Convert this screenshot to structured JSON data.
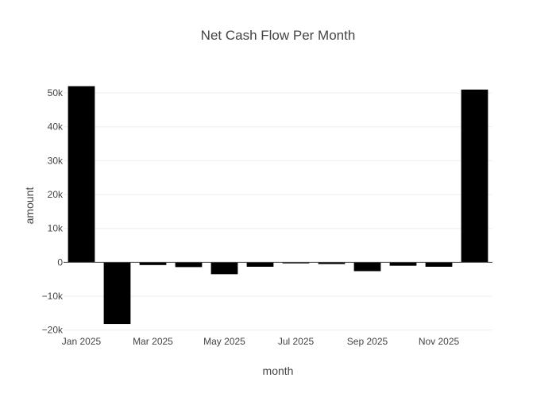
{
  "chart_data": {
    "type": "bar",
    "title": "Net Cash Flow Per Month",
    "xlabel": "month",
    "ylabel": "amount",
    "x": [
      "2025-01",
      "2025-02",
      "2025-03",
      "2025-04",
      "2025-05",
      "2025-06",
      "2025-07",
      "2025-08",
      "2025-09",
      "2025-10",
      "2025-11",
      "2025-12"
    ],
    "values": [
      52000,
      -18200,
      -800,
      -1400,
      -3500,
      -1300,
      -300,
      -500,
      -2600,
      -1000,
      -1300,
      51000
    ],
    "ylim": [
      -21000,
      54000
    ],
    "y_ticks": [
      -20000,
      -10000,
      0,
      10000,
      20000,
      30000,
      40000,
      50000
    ],
    "y_tick_labels": [
      "−20k",
      "−10k",
      "0",
      "10k",
      "20k",
      "30k",
      "40k",
      "50k"
    ],
    "x_tick_labels": [
      "Jan 2025",
      "Mar 2025",
      "May 2025",
      "Jul 2025",
      "Sep 2025",
      "Nov 2025"
    ],
    "x_tick_positions": [
      "2025-01",
      "2025-03",
      "2025-05",
      "2025-07",
      "2025-09",
      "2025-11"
    ],
    "bar_color": "#000000",
    "grid": true,
    "legend": "none"
  }
}
